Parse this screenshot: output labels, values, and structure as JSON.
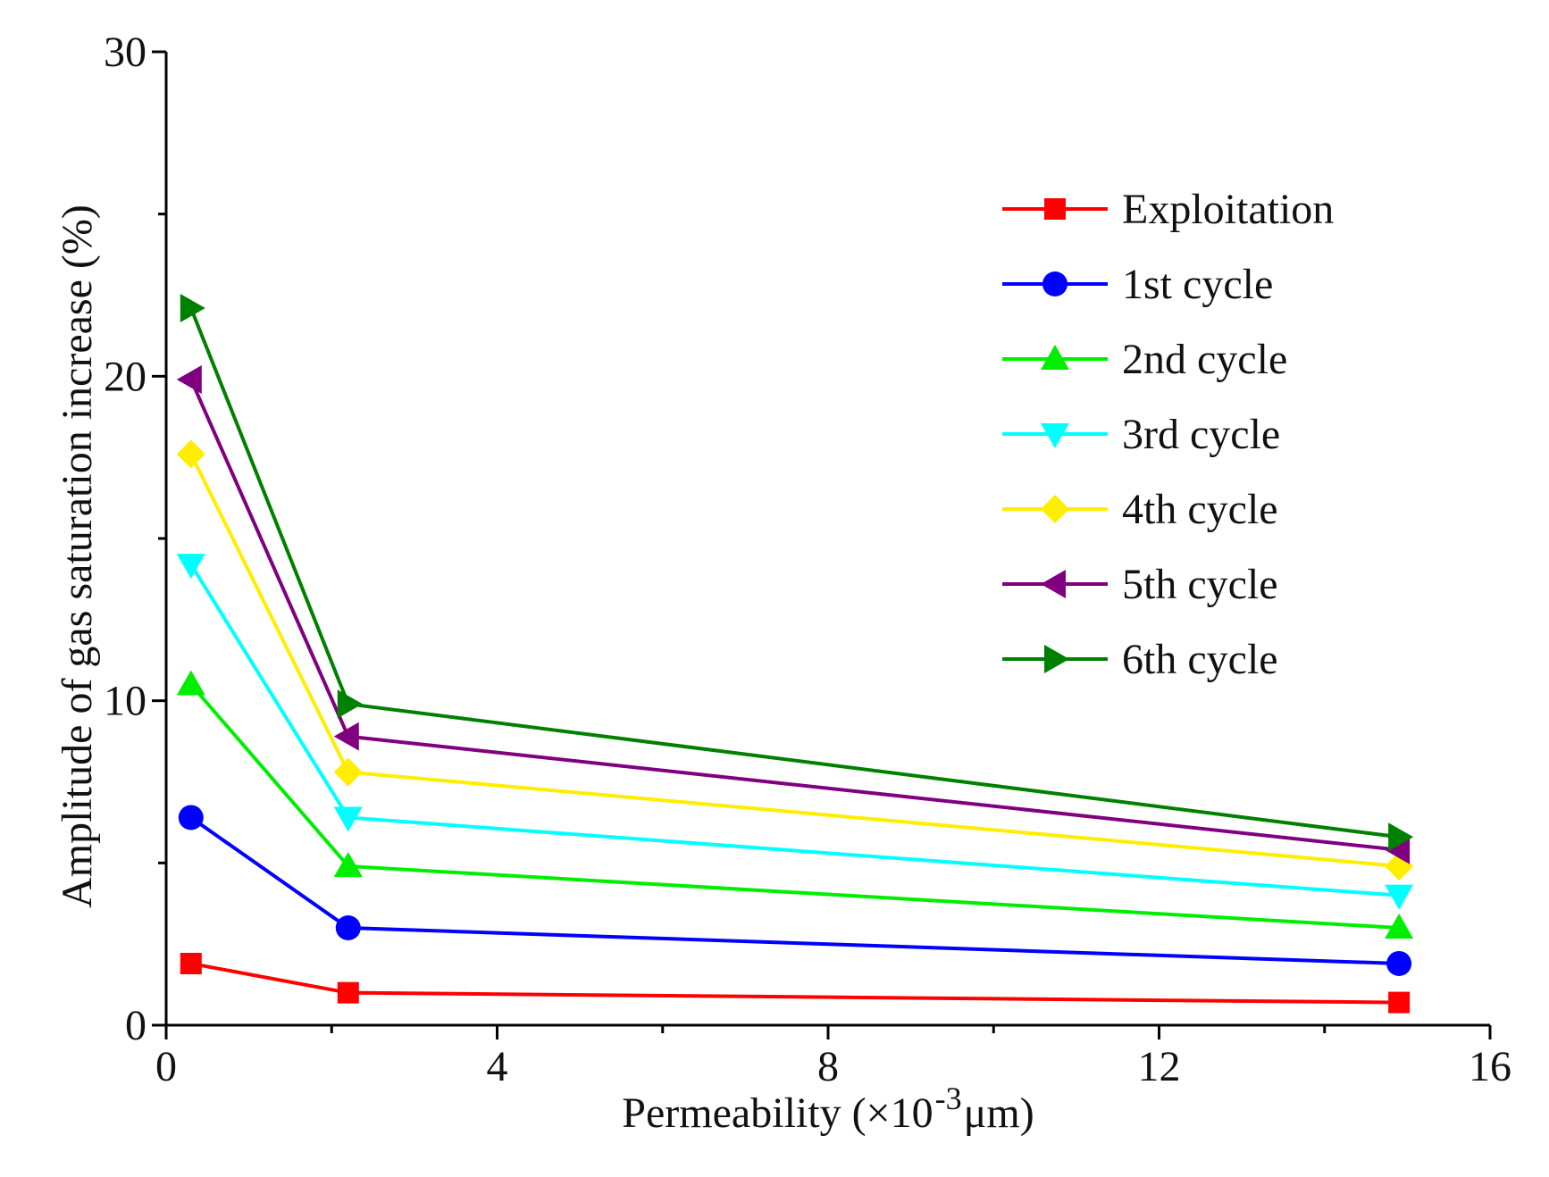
{
  "chart_data": {
    "type": "line",
    "title": "",
    "xlabel": "Permeability (×10",
    "xlabel_exponent": "-3",
    "xlabel_unit": "μm)",
    "ylabel": "Amplitude of  gas saturation increase (%)",
    "xlim": [
      0,
      16
    ],
    "ylim": [
      0,
      30
    ],
    "x_ticks": [
      0,
      4,
      8,
      12,
      16
    ],
    "y_ticks": [
      0,
      10,
      20,
      30
    ],
    "grid": false,
    "legend_position": "top-right",
    "x": [
      0.3,
      2.2,
      14.9
    ],
    "series": [
      {
        "name": "Exploitation",
        "values": [
          1.9,
          1.0,
          0.7
        ],
        "color": "#ff0000",
        "marker": "square"
      },
      {
        "name": "1st cycle",
        "values": [
          6.4,
          3.0,
          1.9
        ],
        "color": "#0000ff",
        "marker": "circle"
      },
      {
        "name": "2nd cycle",
        "values": [
          10.5,
          4.9,
          3.0
        ],
        "color": "#00ee00",
        "marker": "triangle-up"
      },
      {
        "name": "3rd cycle",
        "values": [
          14.2,
          6.4,
          4.0
        ],
        "color": "#00ffff",
        "marker": "triangle-down"
      },
      {
        "name": "4th cycle",
        "values": [
          17.6,
          7.8,
          4.9
        ],
        "color": "#ffee00",
        "marker": "diamond"
      },
      {
        "name": "5th cycle",
        "values": [
          19.9,
          8.9,
          5.4
        ],
        "color": "#800080",
        "marker": "triangle-left"
      },
      {
        "name": "6th cycle",
        "values": [
          22.1,
          9.9,
          5.8
        ],
        "color": "#008000",
        "marker": "triangle-right"
      }
    ]
  }
}
